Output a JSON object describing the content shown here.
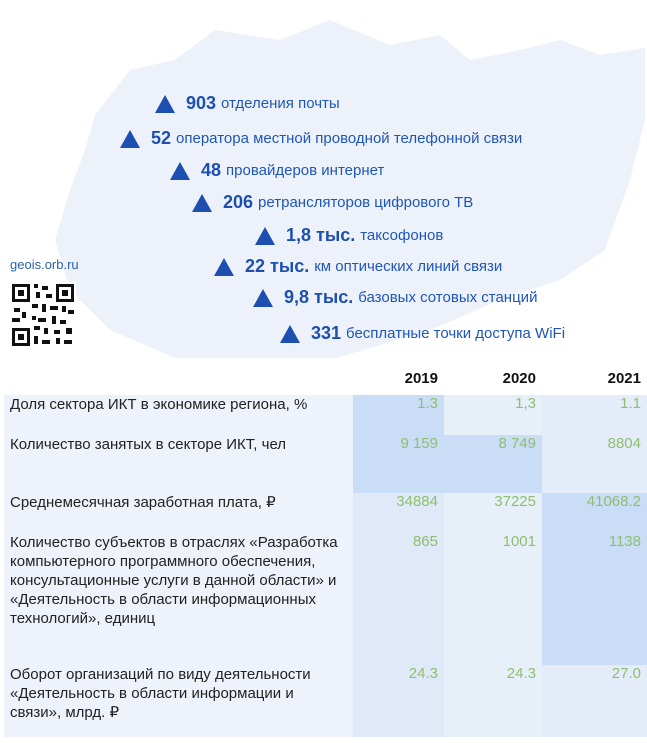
{
  "source_site": "geois.orb.ru",
  "stats": [
    {
      "number": "903",
      "text": "отделения почты"
    },
    {
      "number": "52",
      "text": "оператора местной проводной телефонной связи"
    },
    {
      "number": "48",
      "text": "провайдеров интернет"
    },
    {
      "number": "206",
      "text": "ретрансляторов цифрового ТВ"
    },
    {
      "number": "1,8 тыс.",
      "text": "таксофонов"
    },
    {
      "number": "22 тыс.",
      "text": "км оптических линий связи"
    },
    {
      "number": "9,8 тыс.",
      "text": "базовых сотовых станций"
    },
    {
      "number": "331",
      "text": "бесплатные точки доступа WiFi"
    }
  ],
  "table": {
    "years": [
      "2019",
      "2020",
      "2021"
    ],
    "rows": [
      {
        "label": "Доля сектора ИКТ в экономике региона, %",
        "values": [
          "1.3",
          "1,3",
          "1.1"
        ]
      },
      {
        "label": "Количество занятых в секторе ИКТ, чел",
        "values": [
          "9 159",
          "8 749",
          "8804"
        ]
      },
      {
        "label": "Среднемесячная заработная плата, ₽",
        "values": [
          "34884",
          "37225",
          "41068.2"
        ]
      },
      {
        "label": "Количество субъектов в отраслях «Разработка компьютерного программного обеспечения, консультационные услуги в данной области» и «Деятельность в области информационных технологий», единиц",
        "values": [
          "865",
          "1001",
          "1138"
        ]
      },
      {
        "label": "Оборот организаций по виду деятельности «Деятельность в области информации и связи», млрд. ₽",
        "values": [
          "24.3",
          "24.3",
          "27.0"
        ]
      }
    ]
  },
  "colors": {
    "accent": "#1d4fb0",
    "value_green": "#8dbf6e",
    "map_fill": "#edf2fa"
  }
}
